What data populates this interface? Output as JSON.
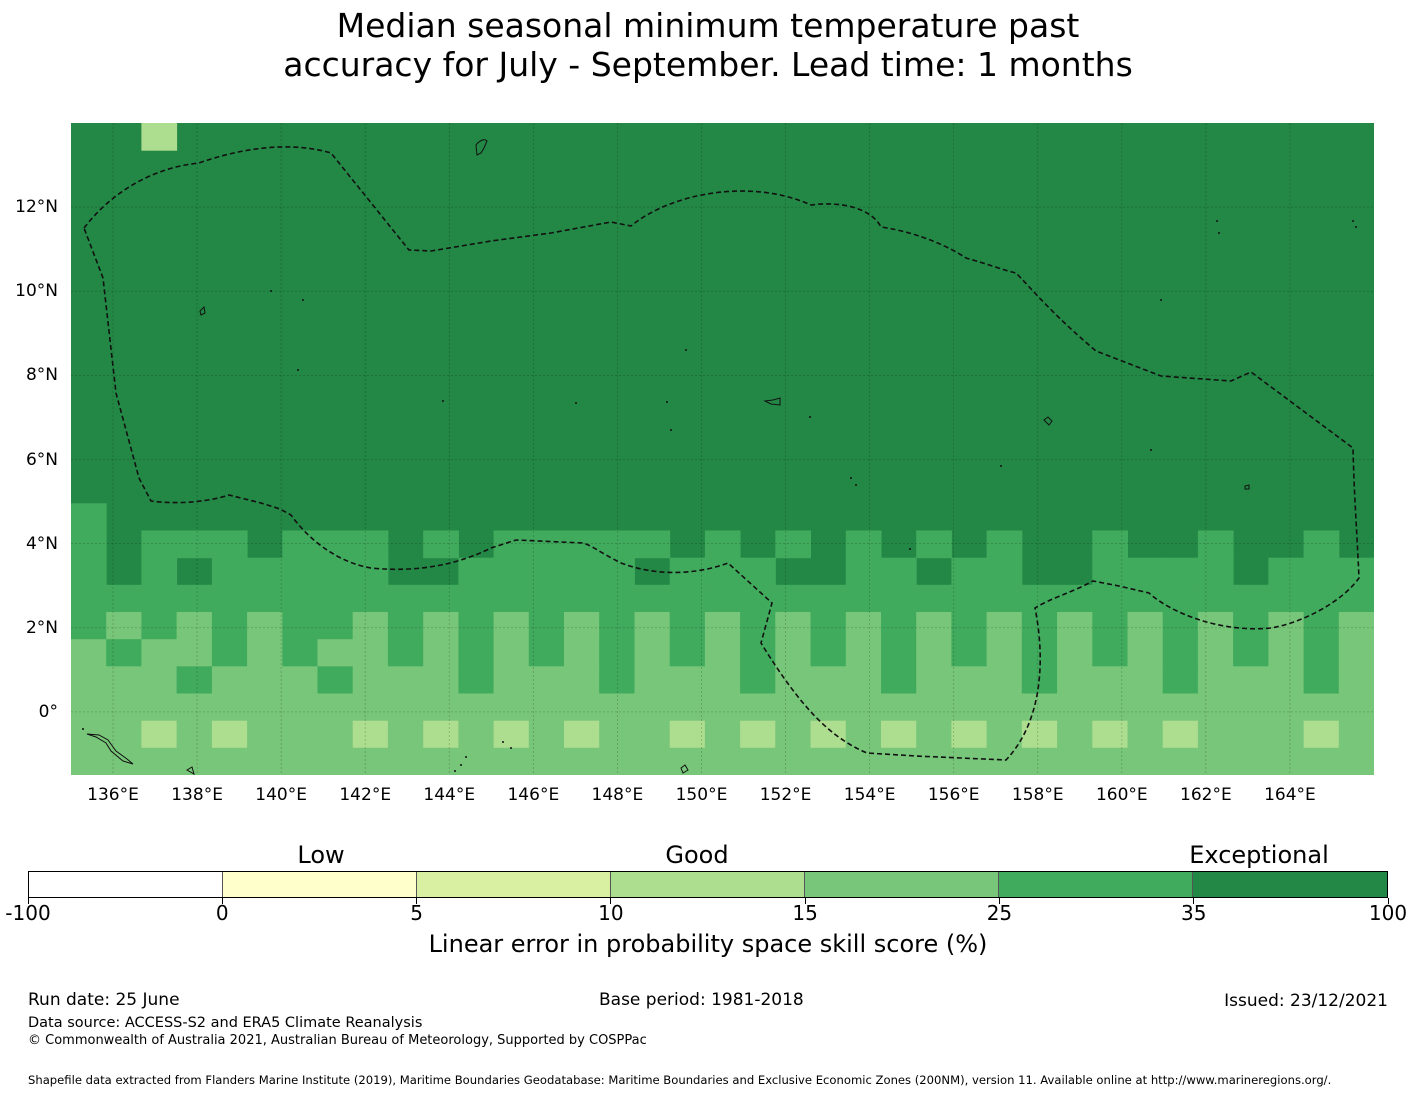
{
  "title": {
    "line1": "Median seasonal minimum temperature past",
    "line2": "accuracy for July - September. Lead time: 1 months"
  },
  "map": {
    "x_ticks": [
      "136°E",
      "138°E",
      "140°E",
      "142°E",
      "144°E",
      "146°E",
      "148°E",
      "150°E",
      "152°E",
      "154°E",
      "156°E",
      "158°E",
      "160°E",
      "162°E",
      "164°E"
    ],
    "y_ticks": [
      "12°N",
      "10°N",
      "8°N",
      "6°N",
      "4°N",
      "2°N",
      "0°"
    ],
    "background_color": "#238845"
  },
  "legend": {
    "categories": [
      "Low",
      "Good",
      "Exceptional"
    ],
    "bins": [
      {
        "from": "-100",
        "to": "0",
        "color": "#ffffff"
      },
      {
        "from": "0",
        "to": "5",
        "color": "#ffffcc"
      },
      {
        "from": "5",
        "to": "10",
        "color": "#d9f0a3"
      },
      {
        "from": "10",
        "to": "15",
        "color": "#addd8e"
      },
      {
        "from": "15",
        "to": "25",
        "color": "#78c679"
      },
      {
        "from": "25",
        "to": "35",
        "color": "#41ab5d"
      },
      {
        "from": "35",
        "to": "100",
        "color": "#238845"
      }
    ],
    "tick_labels": [
      "-100",
      "0",
      "5",
      "10",
      "15",
      "25",
      "35",
      "100"
    ],
    "title": "Linear error in probability space skill score (%)"
  },
  "footer": {
    "run_date": "Run date: 25 June",
    "base_period": "Base period: 1981-2018",
    "issued": "Issued: 23/12/2021",
    "data_source": "Data source: ACCESS-S2 and ERA5 Climate Reanalysis",
    "copyright": "© Commonwealth of Australia 2021, Australian Bureau of Meteorology, Supported by COSPPac",
    "shapefile": "Shapefile data extracted from Flanders Marine Institute (2019), Maritime Boundaries Geodatabase: Maritime Boundaries and Exclusive Economic Zones (200NM), version 11. Available online at http://www.marineregions.org/."
  }
}
